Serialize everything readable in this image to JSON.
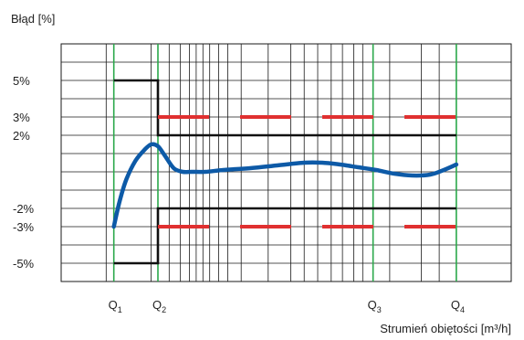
{
  "chart_data": {
    "type": "line",
    "title": "",
    "ylabel": "Błąd [%]",
    "xlabel": "Strumień obiętości [m³/h]",
    "xlim": [
      0,
      100
    ],
    "ylim": [
      -6,
      7
    ],
    "grid": true,
    "y_ticks": [
      {
        "value": 5,
        "label": "5%",
        "color": "#222222"
      },
      {
        "value": 3,
        "label": "3%",
        "color": "#e03030"
      },
      {
        "value": 2,
        "label": "2%",
        "color": "#222222"
      },
      {
        "value": -2,
        "label": "-2%",
        "color": "#222222"
      },
      {
        "value": -3,
        "label": "-3%",
        "color": "#e03030"
      },
      {
        "value": -5,
        "label": "-5%",
        "color": "#222222"
      }
    ],
    "x_markers": [
      {
        "name": "Q",
        "sub": "1",
        "x": 11.7
      },
      {
        "name": "Q",
        "sub": "2",
        "x": 21.5
      },
      {
        "name": "Q",
        "sub": "3",
        "x": 69.3
      },
      {
        "name": "Q",
        "sub": "4",
        "x": 87.8
      }
    ],
    "series": [
      {
        "role": "measured-error",
        "color": "#0d5aa7",
        "x": [
          11.7,
          13,
          14.5,
          16.5,
          18.5,
          20,
          21.5,
          23,
          25,
          27,
          29,
          32,
          36,
          42,
          48,
          54,
          58,
          62,
          66,
          70,
          74,
          78,
          82,
          85,
          87.8
        ],
        "y": [
          -3,
          -1.6,
          -0.4,
          0.6,
          1.2,
          1.5,
          1.4,
          0.9,
          0.2,
          0,
          0,
          0,
          0.1,
          0.2,
          0.35,
          0.5,
          0.5,
          0.4,
          0.25,
          0.1,
          -0.1,
          -0.2,
          -0.15,
          0.1,
          0.4
        ]
      }
    ],
    "limit_lines": [
      {
        "role": "mpe-upper",
        "color": "#111111",
        "points": [
          [
            11.7,
            5
          ],
          [
            21.5,
            5
          ],
          [
            21.5,
            2
          ],
          [
            87.8,
            2
          ]
        ]
      },
      {
        "role": "mpe-lower",
        "color": "#111111",
        "points": [
          [
            11.7,
            -5
          ],
          [
            21.5,
            -5
          ],
          [
            21.5,
            -2
          ],
          [
            87.8,
            -2
          ]
        ]
      },
      {
        "role": "wide-upper",
        "color": "#e03030",
        "dashed": true,
        "y": 3,
        "x_range": [
          21.5,
          87.8
        ]
      },
      {
        "role": "wide-lower",
        "color": "#e03030",
        "dashed": true,
        "y": -3,
        "x_range": [
          21.5,
          87.8
        ]
      }
    ]
  }
}
